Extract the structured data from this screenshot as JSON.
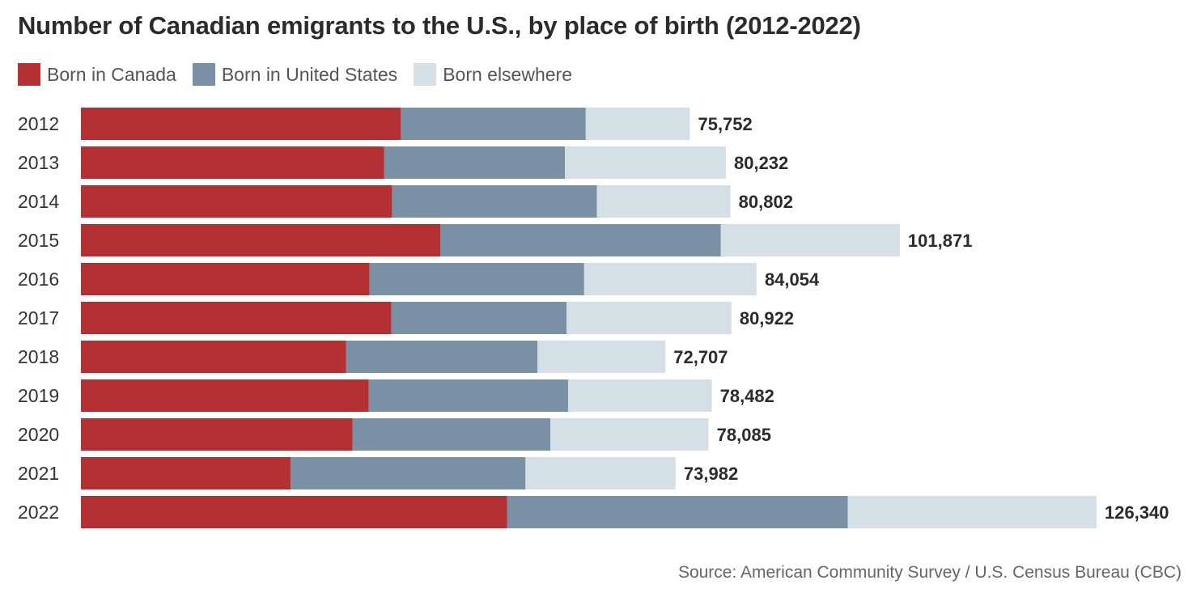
{
  "title": "Number of Canadian emigrants to the U.S., by place of birth (2012-2022)",
  "source": "Source: American Community Survey / U.S. Census Bureau (CBC)",
  "colors": {
    "born_in_canada": "#b33132",
    "born_in_us": "#7a91a5",
    "born_elsewhere": "#d5e0e6"
  },
  "chart_data": {
    "type": "bar",
    "orientation": "horizontal",
    "stacked": true,
    "title": "Number of Canadian emigrants to the U.S., by place of birth (2012-2022)",
    "legend": "top-left",
    "grid": false,
    "xlim": [
      0,
      126340
    ],
    "categories": [
      "2012",
      "2013",
      "2014",
      "2015",
      "2016",
      "2017",
      "2018",
      "2019",
      "2020",
      "2021",
      "2022"
    ],
    "totals": [
      75752,
      80232,
      80802,
      101871,
      84054,
      80922,
      72707,
      78482,
      78085,
      73982,
      126340
    ],
    "total_labels": [
      "75,752",
      "80,232",
      "80,802",
      "101,871",
      "84,054",
      "80,922",
      "72,707",
      "78,482",
      "78,085",
      "73,982",
      "126,340"
    ],
    "series": [
      {
        "name": "Born in Canada",
        "values": [
          39800,
          37700,
          38700,
          44700,
          35900,
          38600,
          33000,
          35800,
          33800,
          26100,
          53000
        ]
      },
      {
        "name": "Born in United States",
        "values": [
          23000,
          22500,
          25500,
          34900,
          26700,
          21800,
          23800,
          24800,
          24600,
          29200,
          42400
        ]
      },
      {
        "name": "Born elsewhere",
        "values": [
          12952,
          20032,
          16602,
          22271,
          21454,
          20522,
          15907,
          17882,
          19685,
          18682,
          30940
        ]
      }
    ]
  }
}
